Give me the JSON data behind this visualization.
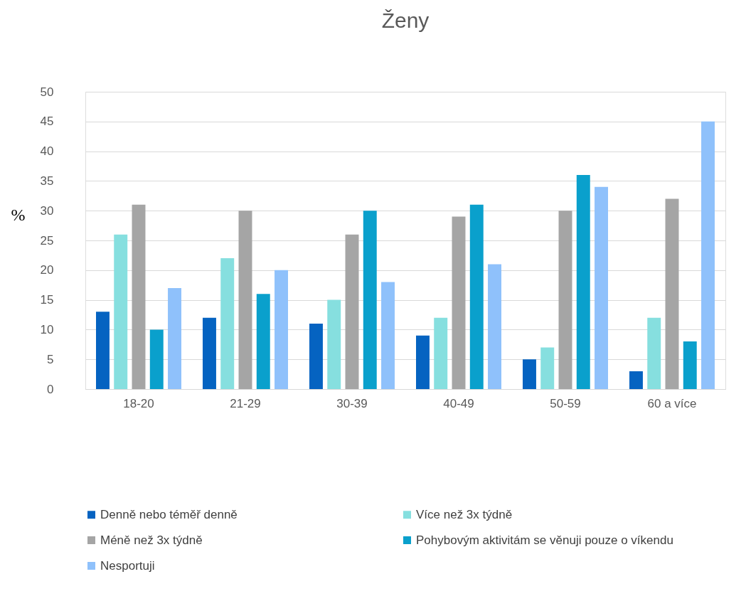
{
  "chart_data": {
    "type": "bar",
    "title": "Ženy",
    "ylabel": "%",
    "categories": [
      "18-20",
      "21-29",
      "30-39",
      "40-49",
      "50-59",
      "60 a více"
    ],
    "series": [
      {
        "name": "Denně nebo téměř denně",
        "color": "#0563c1",
        "values": [
          13,
          12,
          11,
          9,
          5,
          3
        ]
      },
      {
        "name": "Více než 3x týdně",
        "color": "#86dfdf",
        "values": [
          26,
          22,
          15,
          12,
          7,
          12
        ]
      },
      {
        "name": "Méně než 3x týdně",
        "color": "#a5a5a5",
        "values": [
          31,
          30,
          26,
          29,
          30,
          32
        ]
      },
      {
        "name": "Pohybovým aktivitám se věnuji pouze o víkendu",
        "color": "#0aa0cc",
        "values": [
          10,
          16,
          30,
          31,
          36,
          8
        ]
      },
      {
        "name": "Nesportuji",
        "color": "#8fc1fb",
        "values": [
          17,
          20,
          18,
          21,
          34,
          45
        ]
      }
    ],
    "ylim": [
      0,
      50
    ],
    "yticks": [
      0,
      5,
      10,
      15,
      20,
      25,
      30,
      35,
      40,
      45,
      50
    ],
    "grid": "y",
    "legend": "bottom"
  }
}
